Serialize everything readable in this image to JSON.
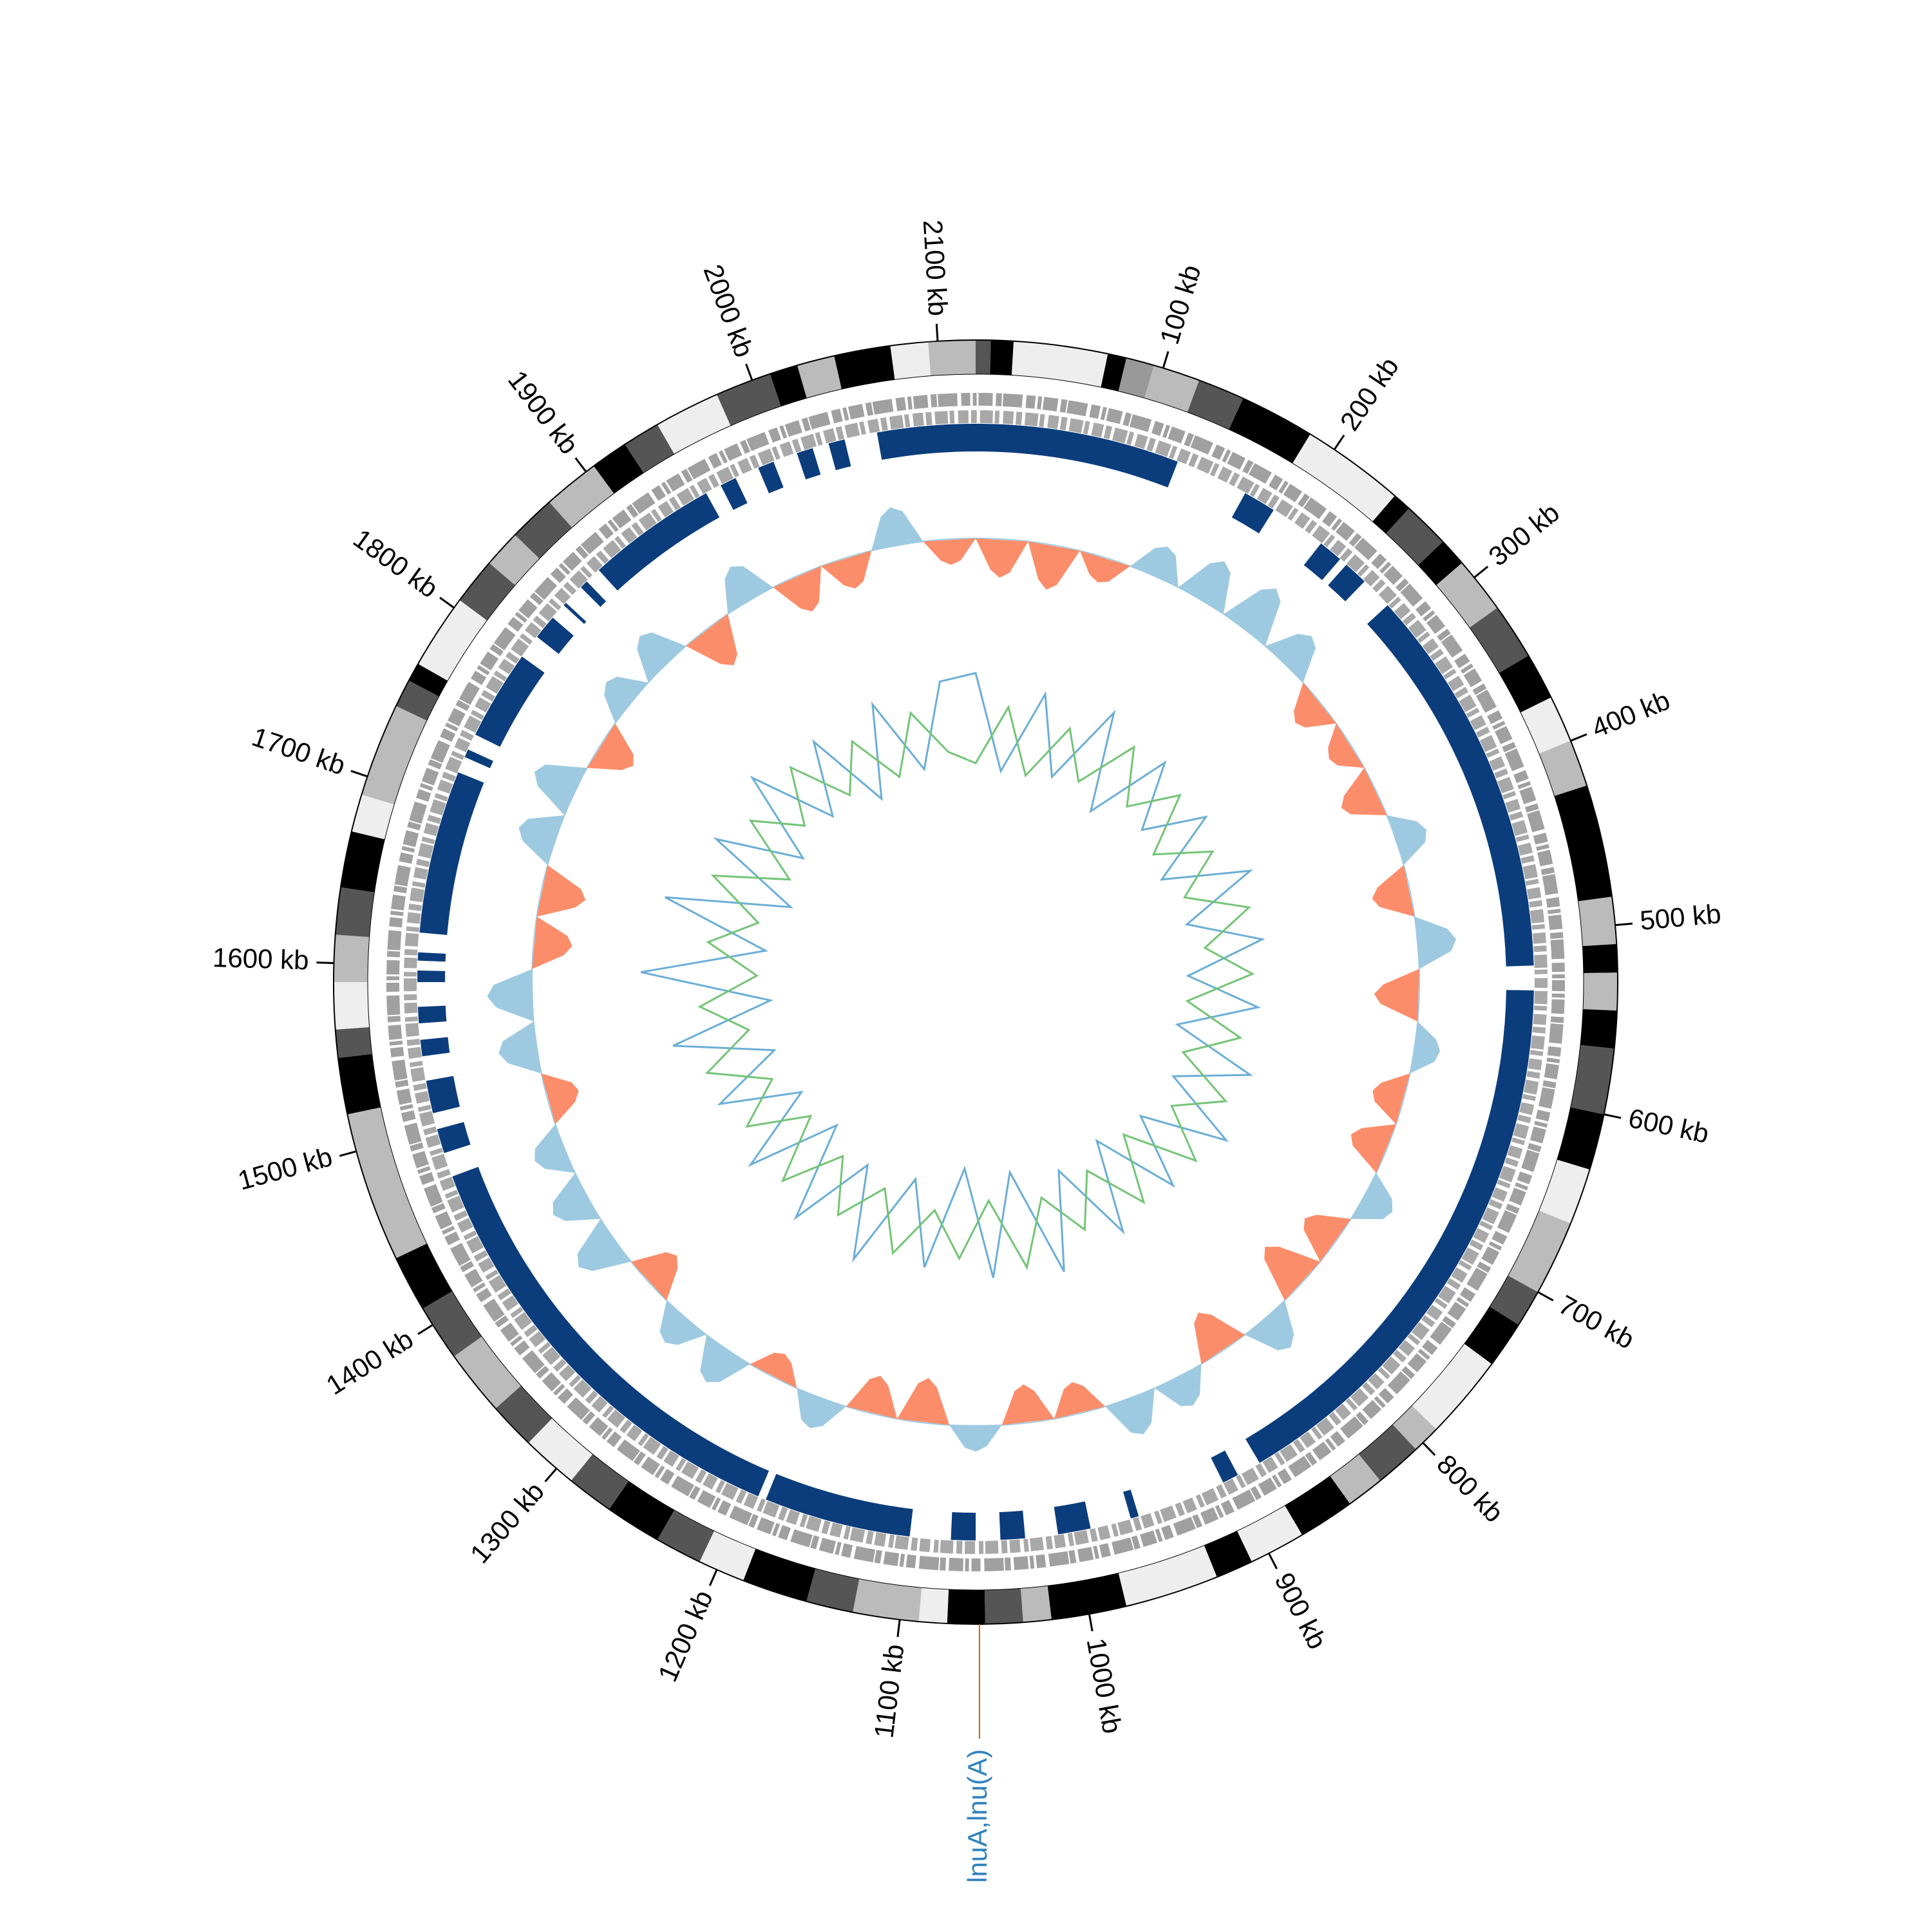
{
  "chart_data": {
    "type": "circos",
    "xlim": [
      0,
      2120
    ],
    "xticks": [
      {
        "value": 100,
        "label": "100 kb"
      },
      {
        "value": 200,
        "label": "200 kb"
      },
      {
        "value": 300,
        "label": "300 kb"
      },
      {
        "value": 400,
        "label": "400 kb"
      },
      {
        "value": 500,
        "label": "500 kb"
      },
      {
        "value": 600,
        "label": "600 kb"
      },
      {
        "value": 700,
        "label": "700 kb"
      },
      {
        "value": 800,
        "label": "800 kb"
      },
      {
        "value": 900,
        "label": "900 kb"
      },
      {
        "value": 1000,
        "label": "1000 kb"
      },
      {
        "value": 1100,
        "label": "1100 kb"
      },
      {
        "value": 1200,
        "label": "1200 kb"
      },
      {
        "value": 1300,
        "label": "1300 kb"
      },
      {
        "value": 1400,
        "label": "1400 kb"
      },
      {
        "value": 1500,
        "label": "1500 kb"
      },
      {
        "value": 1600,
        "label": "1600 kb"
      },
      {
        "value": 1700,
        "label": "1700 kb"
      },
      {
        "value": 1800,
        "label": "1800 kb"
      },
      {
        "value": 1900,
        "label": "1900 kb"
      },
      {
        "value": 2000,
        "label": "2000 kb"
      },
      {
        "value": 2100,
        "label": "2100 kb"
      }
    ],
    "bands": [
      [
        0,
        8,
        "#555555"
      ],
      [
        8,
        20,
        "#000000"
      ],
      [
        20,
        70,
        "#eeeeee"
      ],
      [
        70,
        80,
        "#000000"
      ],
      [
        80,
        95,
        "#999999"
      ],
      [
        95,
        120,
        "#bbbbbb"
      ],
      [
        120,
        145,
        "#555555"
      ],
      [
        145,
        185,
        "#000000"
      ],
      [
        185,
        240,
        "#eeeeee"
      ],
      [
        240,
        250,
        "#000000"
      ],
      [
        250,
        275,
        "#555555"
      ],
      [
        275,
        290,
        "#000000"
      ],
      [
        290,
        320,
        "#bbbbbb"
      ],
      [
        320,
        350,
        "#555555"
      ],
      [
        350,
        375,
        "#000000"
      ],
      [
        375,
        400,
        "#eeeeee"
      ],
      [
        400,
        425,
        "#bbbbbb"
      ],
      [
        425,
        485,
        "#000000"
      ],
      [
        485,
        510,
        "#bbbbbb"
      ],
      [
        510,
        525,
        "#000000"
      ],
      [
        525,
        545,
        "#bbbbbb"
      ],
      [
        545,
        565,
        "#000000"
      ],
      [
        565,
        600,
        "#555555"
      ],
      [
        600,
        630,
        "#000000"
      ],
      [
        630,
        660,
        "#eeeeee"
      ],
      [
        660,
        700,
        "#bbbbbb"
      ],
      [
        700,
        720,
        "#555555"
      ],
      [
        720,
        745,
        "#000000"
      ],
      [
        745,
        790,
        "#eeeeee"
      ],
      [
        790,
        805,
        "#bbbbbb"
      ],
      [
        805,
        830,
        "#555555"
      ],
      [
        830,
        850,
        "#bbbbbb"
      ],
      [
        850,
        880,
        "#000000"
      ],
      [
        880,
        910,
        "#eeeeee"
      ],
      [
        910,
        930,
        "#000000"
      ],
      [
        930,
        980,
        "#eeeeee"
      ],
      [
        980,
        1020,
        "#000000"
      ],
      [
        1020,
        1035,
        "#bbbbbb"
      ],
      [
        1035,
        1055,
        "#555555"
      ],
      [
        1055,
        1075,
        "#000000"
      ],
      [
        1075,
        1090,
        "#eeeeee"
      ],
      [
        1090,
        1125,
        "#bbbbbb"
      ],
      [
        1125,
        1150,
        "#555555"
      ],
      [
        1150,
        1185,
        "#000000"
      ],
      [
        1185,
        1210,
        "#eeeeee"
      ],
      [
        1210,
        1235,
        "#555555"
      ],
      [
        1235,
        1265,
        "#000000"
      ],
      [
        1265,
        1290,
        "#555555"
      ],
      [
        1290,
        1320,
        "#eeeeee"
      ],
      [
        1320,
        1345,
        "#555555"
      ],
      [
        1345,
        1380,
        "#bbbbbb"
      ],
      [
        1380,
        1410,
        "#555555"
      ],
      [
        1410,
        1440,
        "#000000"
      ],
      [
        1440,
        1520,
        "#bbbbbb"
      ],
      [
        1520,
        1550,
        "#000000"
      ],
      [
        1550,
        1565,
        "#555555"
      ],
      [
        1565,
        1590,
        "#eeeeee"
      ],
      [
        1590,
        1615,
        "#bbbbbb"
      ],
      [
        1615,
        1640,
        "#555555"
      ],
      [
        1640,
        1670,
        "#000000"
      ],
      [
        1670,
        1690,
        "#eeeeee"
      ],
      [
        1690,
        1740,
        "#bbbbbb"
      ],
      [
        1740,
        1755,
        "#555555"
      ],
      [
        1755,
        1765,
        "#000000"
      ],
      [
        1765,
        1805,
        "#eeeeee"
      ],
      [
        1805,
        1830,
        "#555555"
      ],
      [
        1830,
        1850,
        "#bbbbbb"
      ],
      [
        1850,
        1875,
        "#555555"
      ],
      [
        1875,
        1905,
        "#bbbbbb"
      ],
      [
        1905,
        1925,
        "#000000"
      ],
      [
        1925,
        1945,
        "#555555"
      ],
      [
        1945,
        1980,
        "#eeeeee"
      ],
      [
        1980,
        2010,
        "#555555"
      ],
      [
        2010,
        2025,
        "#000000"
      ],
      [
        2025,
        2045,
        "#bbbbbb"
      ],
      [
        2045,
        2075,
        "#000000"
      ],
      [
        2075,
        2095,
        "#eeeeee"
      ],
      [
        2095,
        2120,
        "#bbbbbb"
      ]
    ],
    "arcs": {
      "color": "#0b3d7d",
      "intervals": [
        [
          0,
          125
        ],
        [
          170,
          190
        ],
        [
          225,
          240
        ],
        [
          245,
          260
        ],
        [
          280,
          520
        ],
        [
          535,
          880
        ],
        [
          895,
          905
        ],
        [
          960,
          965
        ],
        [
          990,
          1010
        ],
        [
          1030,
          1045
        ],
        [
          1060,
          1075
        ],
        [
          1100,
          1190
        ],
        [
          1195,
          1470
        ],
        [
          1485,
          1500
        ],
        [
          1510,
          1530
        ],
        [
          1545,
          1555
        ],
        [
          1565,
          1575
        ],
        [
          1590,
          1597
        ],
        [
          1603,
          1608
        ],
        [
          1620,
          1720
        ],
        [
          1730,
          1735
        ],
        [
          1745,
          1800
        ],
        [
          1815,
          1830
        ],
        [
          1840,
          1842
        ],
        [
          1855,
          1860
        ],
        [
          1870,
          1950
        ],
        [
          1960,
          1970
        ],
        [
          1985,
          1995
        ],
        [
          2010,
          2020
        ],
        [
          2030,
          2040
        ],
        [
          2060,
          2120
        ]
      ]
    },
    "x": [
      0,
      40,
      80,
      120,
      160,
      200,
      240,
      280,
      320,
      360,
      400,
      440,
      480,
      520,
      560,
      600,
      640,
      680,
      720,
      760,
      800,
      840,
      880,
      920,
      960,
      1000,
      1040,
      1080,
      1120,
      1160,
      1200,
      1240,
      1280,
      1320,
      1360,
      1400,
      1440,
      1480,
      1520,
      1560,
      1600,
      1640,
      1680,
      1720,
      1760,
      1800,
      1840,
      1880,
      1920,
      1960,
      2000,
      2040,
      2080
    ],
    "skew": {
      "colors": [
        "#9ecae1",
        "#fc8d6a"
      ],
      "values": [
        -0.6,
        -0.7,
        -0.4,
        0.5,
        0.7,
        0.8,
        0.6,
        -0.5,
        -0.4,
        -0.6,
        0.5,
        -0.6,
        0.6,
        -0.7,
        0.4,
        -0.5,
        -0.6,
        0.5,
        -0.6,
        -0.8,
        0.6,
        -0.7,
        0.5,
        0.6,
        -0.5,
        -0.6,
        0.4,
        -0.7,
        -0.6,
        0.5,
        -0.4,
        0.6,
        0.5,
        -0.6,
        0.7,
        0.6,
        0.5,
        -0.5,
        0.6,
        0.7,
        -0.6,
        -0.7,
        0.6,
        0.7,
        -0.6,
        0.5,
        0.6,
        -0.7,
        0.6,
        -0.6,
        -0.5,
        0.6,
        -0.4
      ]
    },
    "series": [
      {
        "color": "#6baed6",
        "values": [
          0.9,
          -0.6,
          0.7,
          -0.5,
          0.8,
          -0.7,
          0.6,
          -0.4,
          0.5,
          -0.6,
          0.7,
          -0.5,
          0.6,
          -0.6,
          0.5,
          -0.7,
          0.6,
          -0.5,
          0.7,
          -0.6,
          0.5,
          -0.8,
          0.6,
          -0.7,
          0.8,
          -0.9,
          0.7,
          -1.0,
          0.6,
          -0.7,
          0.8,
          -0.6,
          0.7,
          -0.8,
          0.6,
          -0.7,
          0.5,
          -0.6,
          0.9,
          -0.7,
          1.3,
          -0.6,
          1.1,
          -0.8,
          0.7,
          -0.6,
          0.8,
          -0.5,
          0.6,
          -0.7,
          0.7,
          -0.5,
          0.8
        ]
      },
      {
        "color": "#74c476",
        "values": [
          -0.5,
          0.4,
          -0.6,
          0.3,
          -0.4,
          0.5,
          -0.3,
          0.4,
          -0.5,
          0.3,
          -0.4,
          0.5,
          -0.3,
          0.4,
          -0.6,
          0.3,
          -0.5,
          0.4,
          -0.3,
          0.5,
          -0.6,
          0.4,
          -0.5,
          0.3,
          -0.4,
          0.6,
          -0.5,
          0.4,
          -0.3,
          0.5,
          -0.4,
          0.3,
          -0.5,
          0.4,
          -0.6,
          0.3,
          -0.4,
          0.5,
          -0.3,
          0.4,
          -0.5,
          0.3,
          -0.4,
          0.5,
          -0.6,
          0.4,
          -0.3,
          0.5,
          -0.4,
          0.3,
          -0.5,
          0.4,
          -0.3
        ]
      }
    ],
    "annotation": {
      "text": "lnuA,lnu(A)",
      "position": 1058,
      "color": "#3182bd",
      "line_color": "#e6550d"
    }
  }
}
